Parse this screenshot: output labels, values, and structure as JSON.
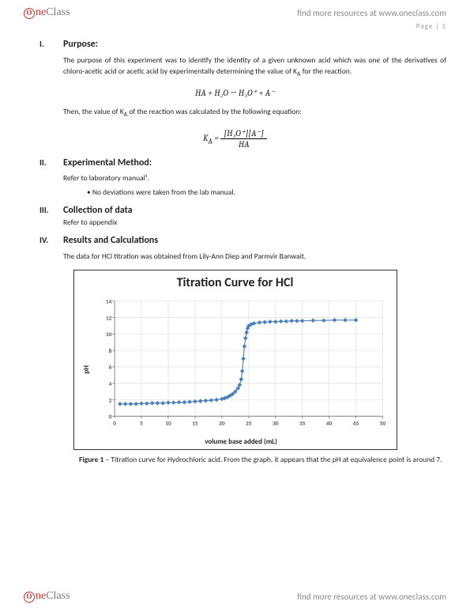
{
  "header": {
    "brand_one": "ne",
    "brand_class": "Class",
    "resource_text": "find more resources at www.oneclass.com"
  },
  "page_number": "Page | 1",
  "sections": {
    "purpose": {
      "roman": "I.",
      "title": "Purpose:",
      "text": "The purpose of this experiment was to identify the identity of a given unknown acid which was one of the derivatives of chloro-acetic acid or acetic acid by experimentally determining the value of K",
      "text_sub": "A",
      "text_tail": " for the reaction.",
      "eq1": "HA   +   H₂O   →   H₃O⁺   +   A⁻",
      "text2": "Then, the value of K",
      "text2_sub": "A",
      "text2_tail": " of the reaction was calculated by the following equation:",
      "eq2_lhs": "K",
      "eq2_sub": "A",
      "eq2_eq": "  =  ",
      "eq2_num": "[H₃O⁺][A⁻]",
      "eq2_den": "HA"
    },
    "method": {
      "roman": "II.",
      "title": "Experimental Method:",
      "text": "Refer to laboratory manual¹.",
      "bullet": "No deviations were taken from the lab manual."
    },
    "data": {
      "roman": "III.",
      "title": "Collection of data",
      "text": "Refer to appendix"
    },
    "results": {
      "roman": "IV.",
      "title": "Results and Calculations",
      "text": "The data for HCl titration was obtained from Lily-Ann Diep and Parmvir Banwait."
    }
  },
  "chart": {
    "type": "scatter-line",
    "title": "Titration Curve for HCl",
    "xlabel": "volume base added   (mL)",
    "ylabel": "pH",
    "xlim": [
      0,
      50
    ],
    "ylim": [
      0,
      14
    ],
    "xtick_step": 5,
    "ytick_step": 2,
    "xticks": [
      "0",
      "5",
      "10",
      "15",
      "20",
      "25",
      "30",
      "35",
      "40",
      "45",
      "50"
    ],
    "yticks": [
      "0",
      "2",
      "4",
      "6",
      "8",
      "10",
      "12",
      "14"
    ],
    "marker_color": "#4a7ebb",
    "marker_size": 3,
    "grid_color": "#d9d9d9",
    "axis_color": "#808080",
    "background_color": "#ffffff",
    "tick_fontsize": 8,
    "title_fontsize": 16,
    "label_fontsize": 9,
    "points": [
      [
        1,
        1.5
      ],
      [
        2,
        1.5
      ],
      [
        3,
        1.5
      ],
      [
        4,
        1.5
      ],
      [
        5,
        1.55
      ],
      [
        6,
        1.55
      ],
      [
        7,
        1.6
      ],
      [
        8,
        1.6
      ],
      [
        9,
        1.6
      ],
      [
        10,
        1.65
      ],
      [
        11,
        1.65
      ],
      [
        12,
        1.7
      ],
      [
        13,
        1.7
      ],
      [
        14,
        1.75
      ],
      [
        15,
        1.8
      ],
      [
        16,
        1.85
      ],
      [
        17,
        1.9
      ],
      [
        18,
        1.95
      ],
      [
        19,
        2.0
      ],
      [
        20,
        2.1
      ],
      [
        20.5,
        2.2
      ],
      [
        21,
        2.3
      ],
      [
        21.5,
        2.5
      ],
      [
        22,
        2.7
      ],
      [
        22.5,
        3.0
      ],
      [
        23,
        3.4
      ],
      [
        23.3,
        3.8
      ],
      [
        23.6,
        4.5
      ],
      [
        23.8,
        5.5
      ],
      [
        24,
        7.0
      ],
      [
        24.2,
        8.5
      ],
      [
        24.4,
        9.5
      ],
      [
        24.6,
        10.2
      ],
      [
        24.8,
        10.7
      ],
      [
        25,
        11.0
      ],
      [
        25.5,
        11.2
      ],
      [
        26,
        11.3
      ],
      [
        27,
        11.4
      ],
      [
        28,
        11.45
      ],
      [
        29,
        11.5
      ],
      [
        30,
        11.5
      ],
      [
        31,
        11.55
      ],
      [
        32,
        11.55
      ],
      [
        33,
        11.6
      ],
      [
        34,
        11.6
      ],
      [
        35,
        11.6
      ],
      [
        37,
        11.65
      ],
      [
        39,
        11.65
      ],
      [
        41,
        11.7
      ],
      [
        43,
        11.7
      ],
      [
        45,
        11.7
      ]
    ]
  },
  "figure_caption": {
    "label": "Figure 1",
    "text": " – Titration curve for Hydrochloric acid. From the graph, it appears that the pH at equivalence point is around 7."
  }
}
